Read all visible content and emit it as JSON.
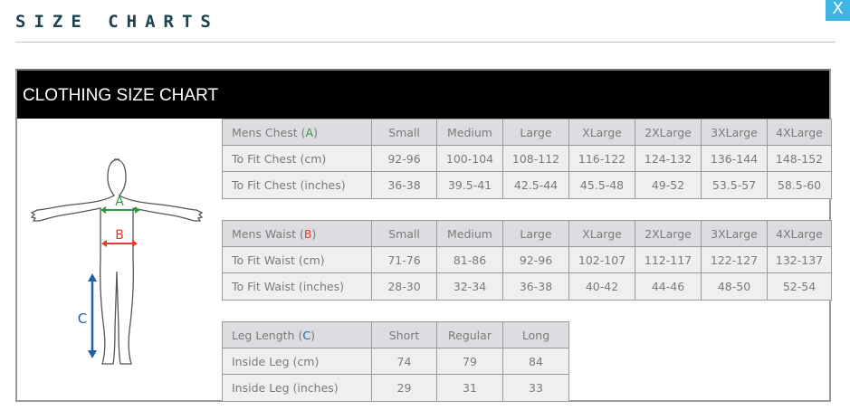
{
  "page": {
    "title": "SIZE CHARTS",
    "close_label": "X"
  },
  "chart": {
    "heading": "CLOTHING SIZE CHART",
    "figure": {
      "labels": {
        "a": "A",
        "b": "B",
        "c": "C"
      },
      "colors": {
        "a": "#2e9a45",
        "b": "#e33b33",
        "c": "#1f5fa8"
      }
    },
    "sections": [
      {
        "header": {
          "label": "Mens Chest",
          "marker": "A",
          "marker_color": "#2e9a45"
        },
        "columns": [
          "Small",
          "Medium",
          "Large",
          "XLarge",
          "2XLarge",
          "3XLarge",
          "4XLarge"
        ],
        "rows": [
          {
            "label": "To Fit Chest (cm)",
            "values": [
              "92-96",
              "100-104",
              "108-112",
              "116-122",
              "124-132",
              "136-144",
              "148-152"
            ]
          },
          {
            "label": "To Fit Chest (inches)",
            "values": [
              "36-38",
              "39.5-41",
              "42.5-44",
              "45.5-48",
              "49-52",
              "53.5-57",
              "58.5-60"
            ]
          }
        ]
      },
      {
        "header": {
          "label": "Mens Waist",
          "marker": "B",
          "marker_color": "#e33b33"
        },
        "columns": [
          "Small",
          "Medium",
          "Large",
          "XLarge",
          "2XLarge",
          "3XLarge",
          "4XLarge"
        ],
        "rows": [
          {
            "label": "To Fit Waist (cm)",
            "values": [
              "71-76",
              "81-86",
              "92-96",
              "102-107",
              "112-117",
              "122-127",
              "132-137"
            ]
          },
          {
            "label": "To Fit Waist (inches)",
            "values": [
              "28-30",
              "32-34",
              "36-38",
              "40-42",
              "44-46",
              "48-50",
              "52-54"
            ]
          }
        ]
      },
      {
        "header": {
          "label": "Leg Length",
          "marker": "C",
          "marker_color": "#1f5fa8"
        },
        "columns": [
          "Short",
          "Regular",
          "Long"
        ],
        "rows": [
          {
            "label": "Inside Leg (cm)",
            "values": [
              "74",
              "79",
              "84"
            ]
          },
          {
            "label": "Inside Leg (inches)",
            "values": [
              "29",
              "31",
              "33"
            ]
          }
        ]
      }
    ]
  }
}
